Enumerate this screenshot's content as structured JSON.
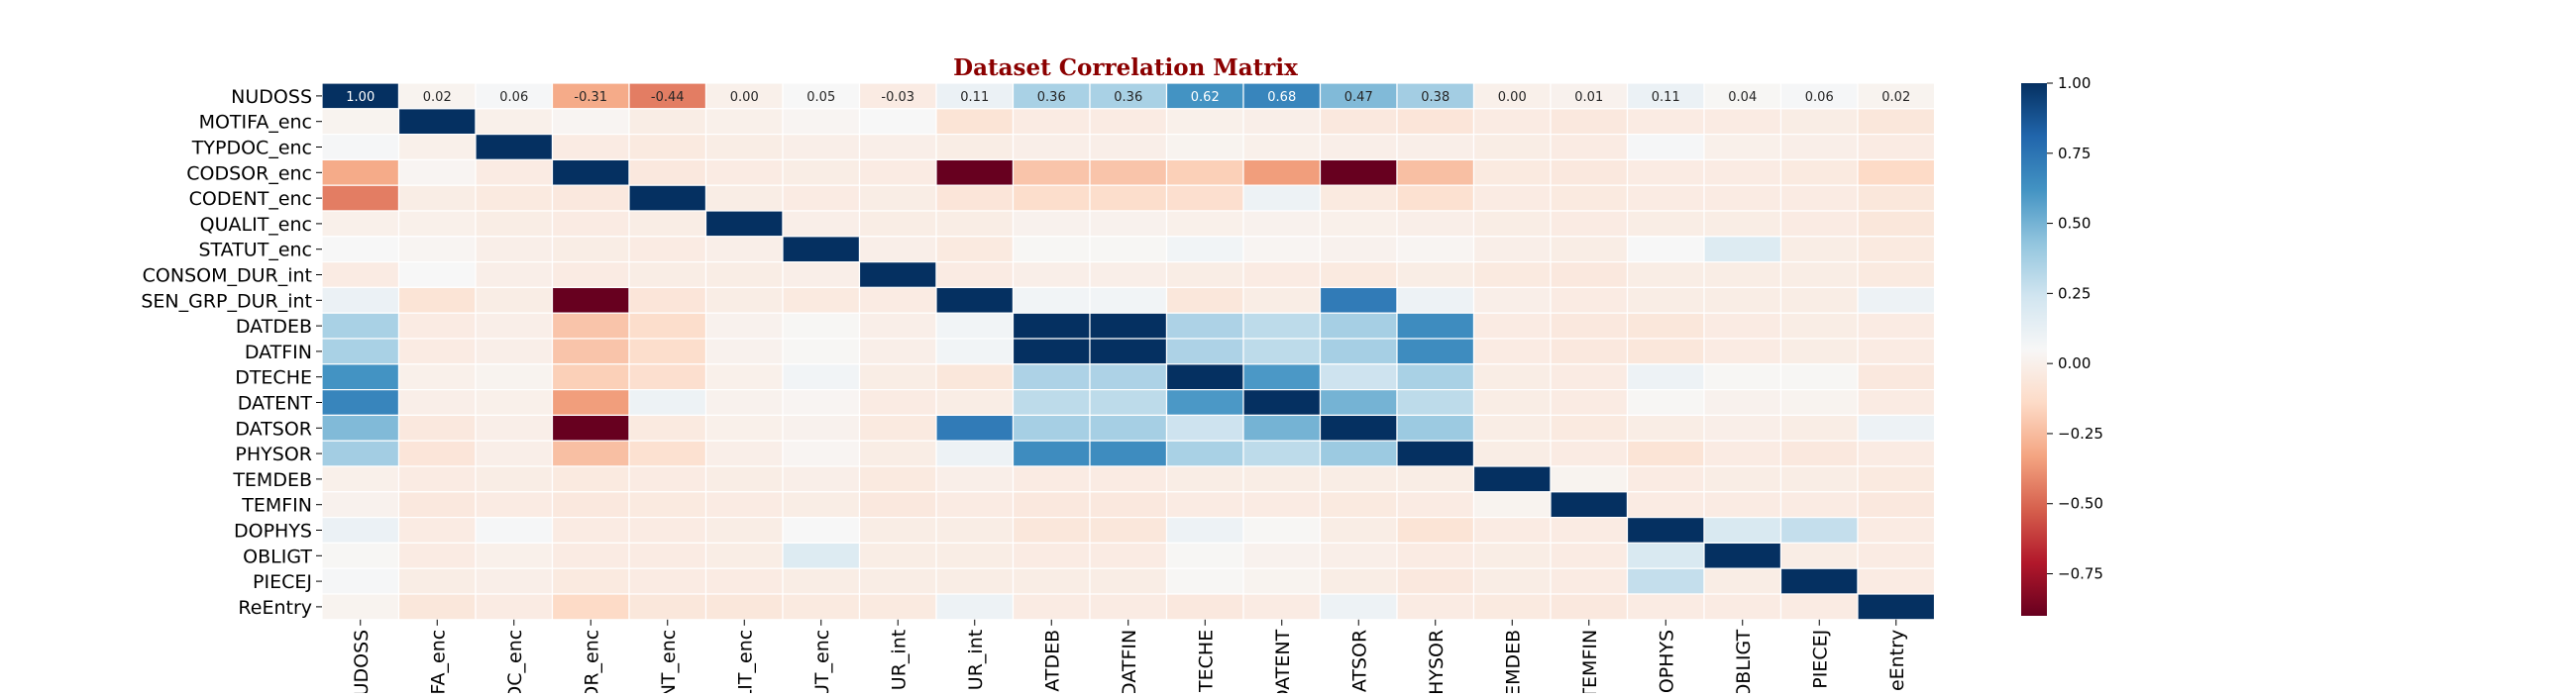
{
  "chart_data": {
    "type": "heatmap",
    "title": "Dataset Correlation Matrix",
    "labels": [
      "NUDOSS",
      "MOTIFA_enc",
      "TYPDOC_enc",
      "CODSOR_enc",
      "CODENT_enc",
      "QUALIT_enc",
      "STATUT_enc",
      "CONSOM_DUR_int",
      "SEN_GRP_DUR_int",
      "DATDEB",
      "DATFIN",
      "DTECHE",
      "DATENT",
      "DATSOR",
      "PHYSOR",
      "TEMDEB",
      "TEMFIN",
      "DOPHYS",
      "OBLIGT",
      "PIECEJ",
      "ReEntry"
    ],
    "column_tick_labels": [
      "UDOSS",
      "FA_enc",
      "DC_enc",
      "DR_enc",
      "NT_enc",
      "LIT_enc",
      "UT_enc",
      "UR_int",
      "UR_int",
      "ATDEB",
      "DATFIN",
      "TECHE",
      "DATENT",
      "ATSOR",
      "HYSOR",
      "EMDEB",
      "TEMFIN",
      "OPHYS",
      "OBLIGT",
      "PIECEJ",
      "eEntry"
    ],
    "first_row_annotations": [
      "1.00",
      "0.02",
      "0.06",
      "-0.31",
      "-0.44",
      "0.00",
      "0.05",
      "-0.03",
      "0.11",
      "0.36",
      "0.36",
      "0.62",
      "0.68",
      "0.47",
      "0.38",
      "0.00",
      "0.01",
      "0.11",
      "0.04",
      "0.06",
      "0.02"
    ],
    "matrix": [
      [
        1.0,
        0.02,
        0.06,
        -0.31,
        -0.44,
        0.0,
        0.05,
        -0.03,
        0.11,
        0.36,
        0.36,
        0.62,
        0.68,
        0.47,
        0.38,
        0.0,
        0.01,
        0.11,
        0.04,
        0.06,
        0.02
      ],
      [
        0.02,
        1.0,
        0.0,
        0.03,
        -0.02,
        0.0,
        0.03,
        0.05,
        -0.08,
        -0.03,
        -0.03,
        0.0,
        -0.01,
        -0.05,
        -0.07,
        -0.03,
        -0.05,
        -0.03,
        -0.03,
        -0.02,
        -0.06
      ],
      [
        0.06,
        0.0,
        1.0,
        -0.03,
        -0.04,
        -0.02,
        -0.01,
        -0.01,
        -0.02,
        -0.01,
        -0.01,
        0.02,
        0.0,
        -0.01,
        -0.01,
        -0.02,
        -0.03,
        0.06,
        0.0,
        -0.01,
        -0.03
      ],
      [
        -0.31,
        0.03,
        -0.03,
        1.0,
        -0.05,
        -0.03,
        -0.02,
        -0.03,
        -0.95,
        -0.22,
        -0.22,
        -0.18,
        -0.35,
        -0.97,
        -0.24,
        -0.04,
        -0.05,
        -0.03,
        -0.03,
        -0.04,
        -0.14
      ],
      [
        -0.44,
        -0.02,
        -0.04,
        -0.05,
        1.0,
        -0.02,
        -0.03,
        -0.02,
        -0.07,
        -0.12,
        -0.12,
        -0.11,
        0.1,
        -0.04,
        -0.1,
        -0.03,
        -0.04,
        -0.03,
        -0.03,
        -0.03,
        -0.06
      ],
      [
        0.0,
        0.0,
        -0.02,
        -0.03,
        -0.02,
        1.0,
        -0.01,
        -0.02,
        -0.02,
        0.01,
        0.01,
        0.0,
        0.01,
        0.0,
        -0.01,
        -0.02,
        -0.03,
        -0.02,
        -0.02,
        -0.03,
        -0.06
      ],
      [
        0.05,
        0.03,
        -0.01,
        -0.02,
        -0.03,
        -0.01,
        1.0,
        -0.01,
        -0.04,
        0.04,
        0.04,
        0.08,
        0.03,
        0.01,
        0.03,
        -0.01,
        -0.02,
        0.05,
        0.18,
        -0.02,
        -0.04
      ],
      [
        -0.03,
        0.05,
        -0.01,
        -0.03,
        -0.02,
        -0.02,
        -0.01,
        1.0,
        -0.03,
        -0.01,
        -0.01,
        -0.02,
        -0.03,
        -0.04,
        -0.02,
        -0.04,
        -0.05,
        -0.02,
        -0.02,
        -0.02,
        -0.04
      ],
      [
        0.11,
        -0.08,
        -0.02,
        -0.95,
        -0.07,
        -0.02,
        -0.04,
        -0.03,
        1.0,
        0.08,
        0.08,
        -0.06,
        -0.02,
        0.72,
        0.1,
        -0.01,
        -0.03,
        -0.02,
        -0.02,
        -0.02,
        0.1
      ],
      [
        0.36,
        -0.03,
        -0.01,
        -0.22,
        -0.12,
        0.01,
        0.04,
        -0.01,
        0.08,
        1.0,
        1.0,
        0.35,
        0.3,
        0.37,
        0.65,
        -0.03,
        -0.05,
        -0.06,
        -0.03,
        -0.02,
        -0.03
      ],
      [
        0.36,
        -0.03,
        -0.01,
        -0.22,
        -0.12,
        0.01,
        0.04,
        -0.01,
        0.08,
        1.0,
        1.0,
        0.35,
        0.3,
        0.37,
        0.65,
        -0.03,
        -0.05,
        -0.06,
        -0.03,
        -0.02,
        -0.03
      ],
      [
        0.62,
        0.0,
        0.02,
        -0.18,
        -0.11,
        0.0,
        0.08,
        -0.02,
        -0.06,
        0.35,
        0.35,
        1.0,
        0.6,
        0.25,
        0.36,
        -0.02,
        -0.03,
        0.1,
        0.04,
        0.04,
        -0.05
      ],
      [
        0.68,
        -0.01,
        0.0,
        -0.35,
        0.1,
        0.01,
        0.03,
        -0.03,
        -0.02,
        0.3,
        0.3,
        0.6,
        1.0,
        0.5,
        0.3,
        -0.02,
        -0.03,
        0.04,
        0.01,
        0.02,
        -0.03
      ],
      [
        0.47,
        -0.05,
        -0.01,
        -0.97,
        -0.04,
        0.0,
        0.01,
        -0.04,
        0.72,
        0.37,
        0.37,
        0.25,
        0.5,
        1.0,
        0.4,
        -0.02,
        -0.04,
        -0.02,
        -0.01,
        -0.02,
        0.1
      ],
      [
        0.38,
        -0.07,
        -0.01,
        -0.24,
        -0.1,
        -0.01,
        0.03,
        -0.02,
        0.1,
        0.65,
        0.65,
        0.36,
        0.3,
        0.4,
        1.0,
        -0.02,
        -0.03,
        -0.08,
        -0.03,
        -0.05,
        -0.03
      ],
      [
        0.0,
        -0.03,
        -0.02,
        -0.04,
        -0.03,
        -0.02,
        -0.01,
        -0.04,
        -0.01,
        -0.03,
        -0.03,
        -0.02,
        -0.02,
        -0.02,
        -0.02,
        1.0,
        0.02,
        -0.03,
        -0.02,
        -0.02,
        -0.04
      ],
      [
        0.01,
        -0.05,
        -0.03,
        -0.05,
        -0.04,
        -0.03,
        -0.02,
        -0.05,
        -0.03,
        -0.05,
        -0.05,
        -0.03,
        -0.03,
        -0.04,
        -0.03,
        0.02,
        1.0,
        -0.03,
        -0.03,
        -0.03,
        -0.05
      ],
      [
        0.11,
        -0.03,
        0.06,
        -0.03,
        -0.03,
        -0.02,
        0.05,
        -0.02,
        -0.02,
        -0.06,
        -0.06,
        0.1,
        0.04,
        -0.02,
        -0.08,
        -0.03,
        -0.03,
        1.0,
        0.2,
        0.28,
        -0.03
      ],
      [
        0.04,
        -0.03,
        0.0,
        -0.03,
        -0.03,
        -0.02,
        0.18,
        -0.02,
        -0.02,
        -0.03,
        -0.03,
        0.04,
        0.01,
        -0.01,
        -0.03,
        -0.02,
        -0.03,
        0.2,
        1.0,
        -0.02,
        -0.03
      ],
      [
        0.06,
        -0.02,
        -0.01,
        -0.04,
        -0.03,
        -0.03,
        -0.02,
        -0.02,
        -0.02,
        -0.02,
        -0.02,
        0.04,
        0.02,
        -0.02,
        -0.05,
        -0.02,
        -0.03,
        0.28,
        -0.02,
        1.0,
        -0.03
      ],
      [
        0.02,
        -0.06,
        -0.03,
        -0.14,
        -0.06,
        -0.06,
        -0.04,
        -0.04,
        0.1,
        -0.03,
        -0.03,
        -0.05,
        -0.03,
        0.1,
        -0.03,
        -0.04,
        -0.05,
        -0.03,
        -0.03,
        -0.03,
        1.0
      ]
    ],
    "colorbar": {
      "range": [
        -0.9,
        1.0
      ],
      "ticks": [
        1.0,
        0.75,
        0.5,
        0.25,
        0.0,
        -0.25,
        -0.5,
        -0.75
      ],
      "tick_labels": [
        "1.00",
        "0.75",
        "0.50",
        "0.25",
        "0.00",
        "−0.25",
        "−0.50",
        "−0.75"
      ]
    },
    "colormap": "RdBu",
    "colormap_stops": [
      "#67001f",
      "#b2182b",
      "#d6604d",
      "#f4a582",
      "#fddbc7",
      "#f7f7f7",
      "#d1e5f0",
      "#92c5de",
      "#4393c3",
      "#2166ac",
      "#053061"
    ],
    "grid": "white cell separators",
    "legend": "colorbar-right"
  }
}
